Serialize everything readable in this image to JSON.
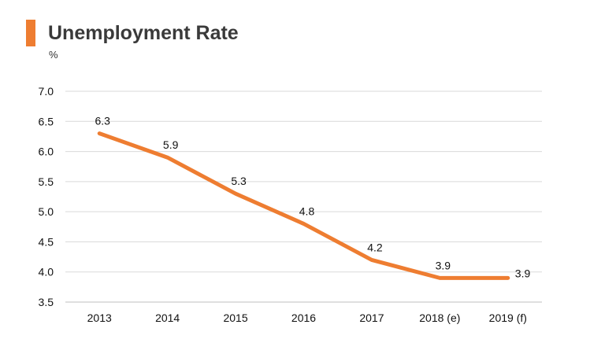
{
  "chart_data": {
    "type": "line",
    "title": "Unemployment Rate",
    "ylabel": "%",
    "xlabel": "",
    "categories": [
      "2013",
      "2014",
      "2015",
      "2016",
      "2017",
      "2018 (e)",
      "2019 (f)"
    ],
    "series": [
      {
        "name": "Unemployment Rate",
        "values": [
          6.3,
          5.9,
          5.3,
          4.8,
          4.2,
          3.9,
          3.9
        ],
        "labels": [
          "6.3",
          "5.9",
          "5.3",
          "4.8",
          "4.2",
          "3.9",
          "3.9"
        ],
        "color": "#ee7d31"
      }
    ],
    "ylim": [
      3.5,
      7.0
    ],
    "yticks": [
      "7.0",
      "6.5",
      "6.0",
      "5.5",
      "5.0",
      "4.5",
      "4.0",
      "3.5"
    ],
    "ytick_values": [
      7.0,
      6.5,
      6.0,
      5.5,
      5.0,
      4.5,
      4.0,
      3.5
    ],
    "grid": true,
    "legend": "none"
  },
  "colors": {
    "accent": "#ee7d31",
    "grid": "#d9d9d9",
    "axis": "#bfbfbf"
  }
}
